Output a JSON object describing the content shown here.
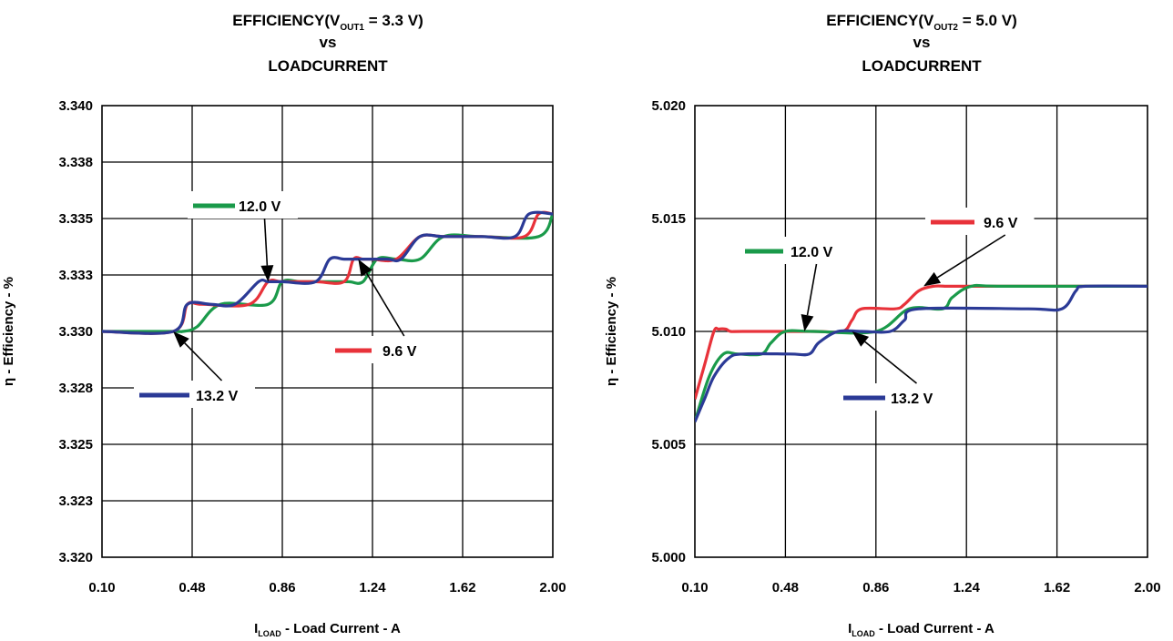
{
  "chart_data": [
    {
      "type": "line",
      "title": {
        "line1_pre": "EFFICIENCY(V",
        "line1_sub": "OUT1",
        "line1_post": " = 3.3 V)",
        "line2": "vs",
        "line3": "LOADCURRENT"
      },
      "xlabel": {
        "pre": "I",
        "sub": "LOAD",
        "post": " - Load Current - A"
      },
      "ylabel": "η  - Efficiency - %",
      "xlim": [
        0.1,
        2.0
      ],
      "ylim": [
        3.32,
        3.34
      ],
      "x_ticks": [
        "0.10",
        "0.48",
        "0.86",
        "1.24",
        "1.62",
        "2.00"
      ],
      "y_ticks": [
        "3.320",
        "3.323",
        "3.325",
        "3.328",
        "3.330",
        "3.333",
        "3.335",
        "3.338",
        "3.340"
      ],
      "grid": true,
      "series": [
        {
          "name": "12.0 V",
          "color": "#1a9a4a",
          "x": [
            0.1,
            0.4,
            0.44,
            0.5,
            0.6,
            0.8,
            0.86,
            0.94,
            1.06,
            1.14,
            1.2,
            1.26,
            1.34,
            1.44,
            1.54,
            1.7,
            1.94,
            2.0
          ],
          "y": [
            3.33,
            3.33,
            3.33,
            3.3302,
            3.3312,
            3.3312,
            3.3322,
            3.3322,
            3.3322,
            3.3322,
            3.3322,
            3.3332,
            3.3332,
            3.3332,
            3.3342,
            3.3342,
            3.3342,
            3.3352
          ]
        },
        {
          "name": "9.6 V",
          "color": "#e8323a",
          "x": [
            0.1,
            0.4,
            0.46,
            0.52,
            0.72,
            0.8,
            0.86,
            1.0,
            1.12,
            1.16,
            1.2,
            1.24,
            1.34,
            1.44,
            1.54,
            1.7,
            1.88,
            1.94,
            2.0
          ],
          "y": [
            3.33,
            3.33,
            3.3312,
            3.3312,
            3.3312,
            3.3322,
            3.3322,
            3.3322,
            3.3322,
            3.3332,
            3.3332,
            3.3332,
            3.3332,
            3.3342,
            3.3342,
            3.3342,
            3.3342,
            3.3352,
            3.3352
          ]
        },
        {
          "name": "13.2 V",
          "color": "#2b3a96",
          "x": [
            0.1,
            0.4,
            0.46,
            0.56,
            0.66,
            0.76,
            0.8,
            0.86,
            1.0,
            1.06,
            1.12,
            1.18,
            1.3,
            1.36,
            1.44,
            1.54,
            1.7,
            1.84,
            1.9,
            2.0
          ],
          "y": [
            3.33,
            3.33,
            3.3312,
            3.3312,
            3.3312,
            3.3322,
            3.3322,
            3.3322,
            3.3322,
            3.3332,
            3.3332,
            3.3332,
            3.3332,
            3.3332,
            3.3342,
            3.3342,
            3.3342,
            3.3342,
            3.3352,
            3.3352
          ]
        }
      ],
      "annotations": [
        {
          "text": "12.0 V",
          "series": "12.0 V",
          "arrow_to": [
            0.8,
            3.3322
          ]
        },
        {
          "text": "9.6 V",
          "series": "9.6 V",
          "arrow_to": [
            1.18,
            3.3332
          ]
        },
        {
          "text": "13.2 V",
          "series": "13.2 V",
          "arrow_to": [
            0.4,
            3.33
          ]
        }
      ]
    },
    {
      "type": "line",
      "title": {
        "line1_pre": "EFFICIENCY(V",
        "line1_sub": "OUT2",
        "line1_post": " = 5.0 V)",
        "line2": "vs",
        "line3": "LOADCURRENT"
      },
      "xlabel": {
        "pre": "I",
        "sub": "LOAD",
        "post": " - Load Current - A"
      },
      "ylabel": "η  - Efficiency - %",
      "xlim": [
        0.1,
        2.0
      ],
      "ylim": [
        5.0,
        5.02
      ],
      "x_ticks": [
        "0.10",
        "0.48",
        "0.86",
        "1.24",
        "1.62",
        "2.00"
      ],
      "y_ticks": [
        "5.000",
        "5.005",
        "5.010",
        "5.015",
        "5.020"
      ],
      "grid": true,
      "series": [
        {
          "name": "9.6 V",
          "color": "#e8323a",
          "x": [
            0.1,
            0.14,
            0.18,
            0.2,
            0.23,
            0.25,
            0.3,
            0.6,
            0.72,
            0.76,
            0.8,
            0.94,
            0.98,
            1.04,
            1.1,
            1.16,
            1.2,
            1.3,
            2.0
          ],
          "y": [
            5.007,
            5.0085,
            5.01,
            5.0101,
            5.0101,
            5.01,
            5.01,
            5.01,
            5.01,
            5.0105,
            5.011,
            5.011,
            5.0112,
            5.0118,
            5.012,
            5.012,
            5.012,
            5.012,
            5.012
          ]
        },
        {
          "name": "12.0 V",
          "color": "#1a9a4a",
          "x": [
            0.1,
            0.16,
            0.22,
            0.28,
            0.38,
            0.42,
            0.48,
            0.6,
            0.86,
            1.0,
            1.14,
            1.18,
            1.26,
            1.4,
            2.0
          ],
          "y": [
            5.006,
            5.008,
            5.009,
            5.009,
            5.009,
            5.0095,
            5.01,
            5.01,
            5.01,
            5.011,
            5.011,
            5.0115,
            5.012,
            5.012,
            5.012
          ]
        },
        {
          "name": "13.2 V",
          "color": "#2b3a96",
          "x": [
            0.1,
            0.14,
            0.18,
            0.24,
            0.3,
            0.5,
            0.58,
            0.62,
            0.7,
            0.8,
            0.92,
            0.98,
            1.04,
            1.5,
            1.64,
            1.7,
            1.74,
            2.0
          ],
          "y": [
            5.006,
            5.007,
            5.008,
            5.0088,
            5.009,
            5.009,
            5.009,
            5.0095,
            5.01,
            5.01,
            5.01,
            5.0105,
            5.011,
            5.011,
            5.011,
            5.0118,
            5.012,
            5.012
          ]
        }
      ],
      "annotations": [
        {
          "text": "9.6 V",
          "series": "9.6 V",
          "arrow_to": [
            1.06,
            5.012
          ]
        },
        {
          "text": "12.0 V",
          "series": "12.0 V",
          "arrow_to": [
            0.56,
            5.01
          ]
        },
        {
          "text": "13.2 V",
          "series": "13.2 V",
          "arrow_to": [
            0.76,
            5.01
          ]
        }
      ]
    }
  ]
}
